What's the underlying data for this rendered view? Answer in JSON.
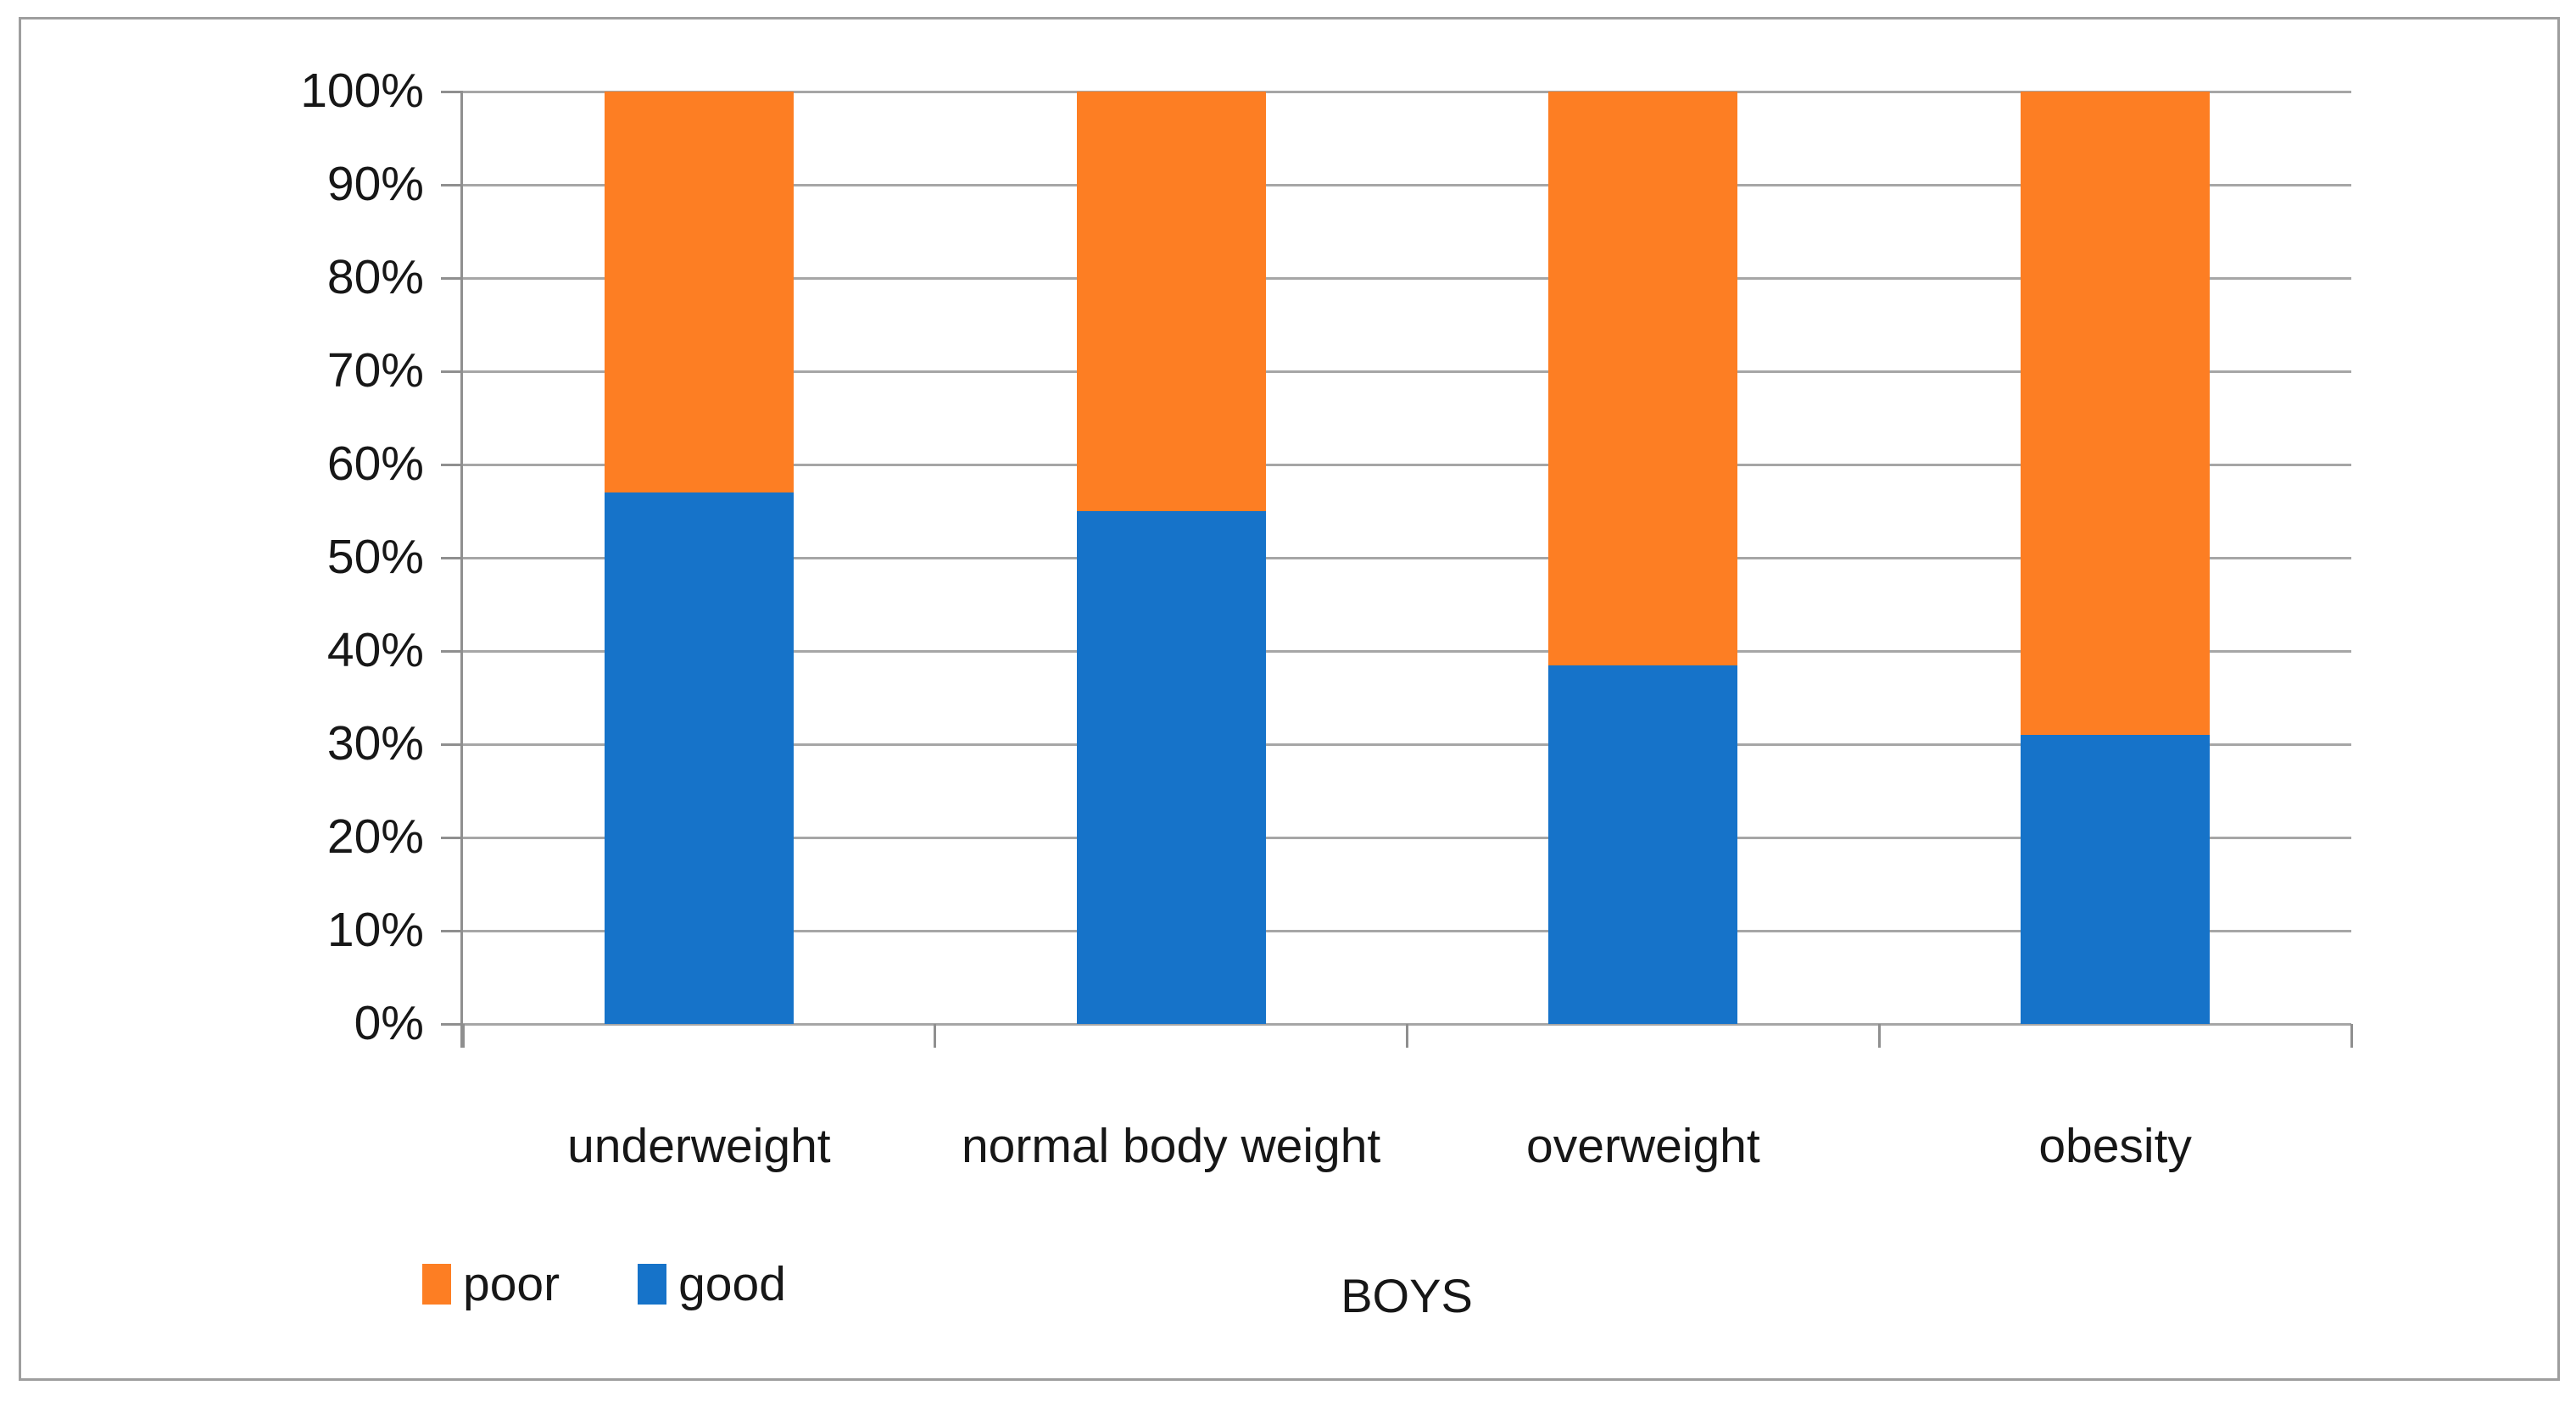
{
  "chart_data": {
    "type": "bar",
    "subtype": "stacked-100-percent-column",
    "title": "",
    "xlabel": "BOYS",
    "ylabel": "",
    "categories": [
      "underweight",
      "normal body weight",
      "overweight",
      "obesity"
    ],
    "series": [
      {
        "name": "good",
        "color": "#1673C9",
        "values": [
          57,
          55,
          38.5,
          31
        ]
      },
      {
        "name": "poor",
        "color": "#FD7E23",
        "values": [
          43,
          45,
          61.5,
          69
        ]
      }
    ],
    "y_axis": {
      "min": 0,
      "max": 100,
      "tick_step": 10,
      "tick_labels": [
        "0%",
        "10%",
        "20%",
        "30%",
        "40%",
        "50%",
        "60%",
        "70%",
        "80%",
        "90%",
        "100%"
      ]
    },
    "legend": {
      "position": "bottom-left",
      "entries": [
        {
          "label": "poor",
          "color": "#FD7E23"
        },
        {
          "label": "good",
          "color": "#1673C9"
        }
      ]
    },
    "grid": true,
    "colors": {
      "gridline": "#a6a6a6",
      "axis": "#8f8f8f",
      "frame_border": "#9e9e9e",
      "text": "#171717",
      "background": "#ffffff"
    }
  }
}
